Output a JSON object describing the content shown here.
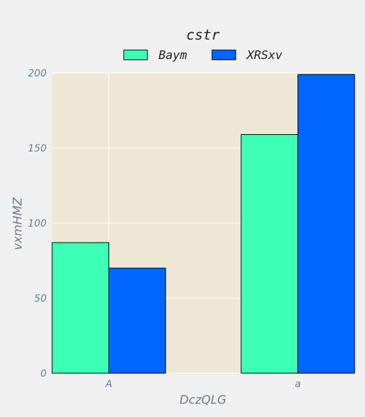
{
  "chart_data": {
    "type": "bar",
    "title": "cstr",
    "xlabel": "DczQLG",
    "ylabel": "vxmHMZ",
    "categories": [
      "A",
      "a"
    ],
    "series": [
      {
        "name": "Baym",
        "values": [
          87,
          159
        ],
        "color": "#3dffb5"
      },
      {
        "name": "XRSxv",
        "values": [
          70,
          199
        ],
        "color": "#0066ff"
      }
    ],
    "ylim": [
      0,
      200
    ],
    "yticks": [
      0,
      50,
      100,
      150,
      200
    ],
    "grid": true,
    "legend": "top-center",
    "colors": {
      "plot_bg": "#efe7d5",
      "figure_bg": "#f0f0f0",
      "grid": "#ffffff",
      "tick_text": "#6b7b88"
    }
  }
}
